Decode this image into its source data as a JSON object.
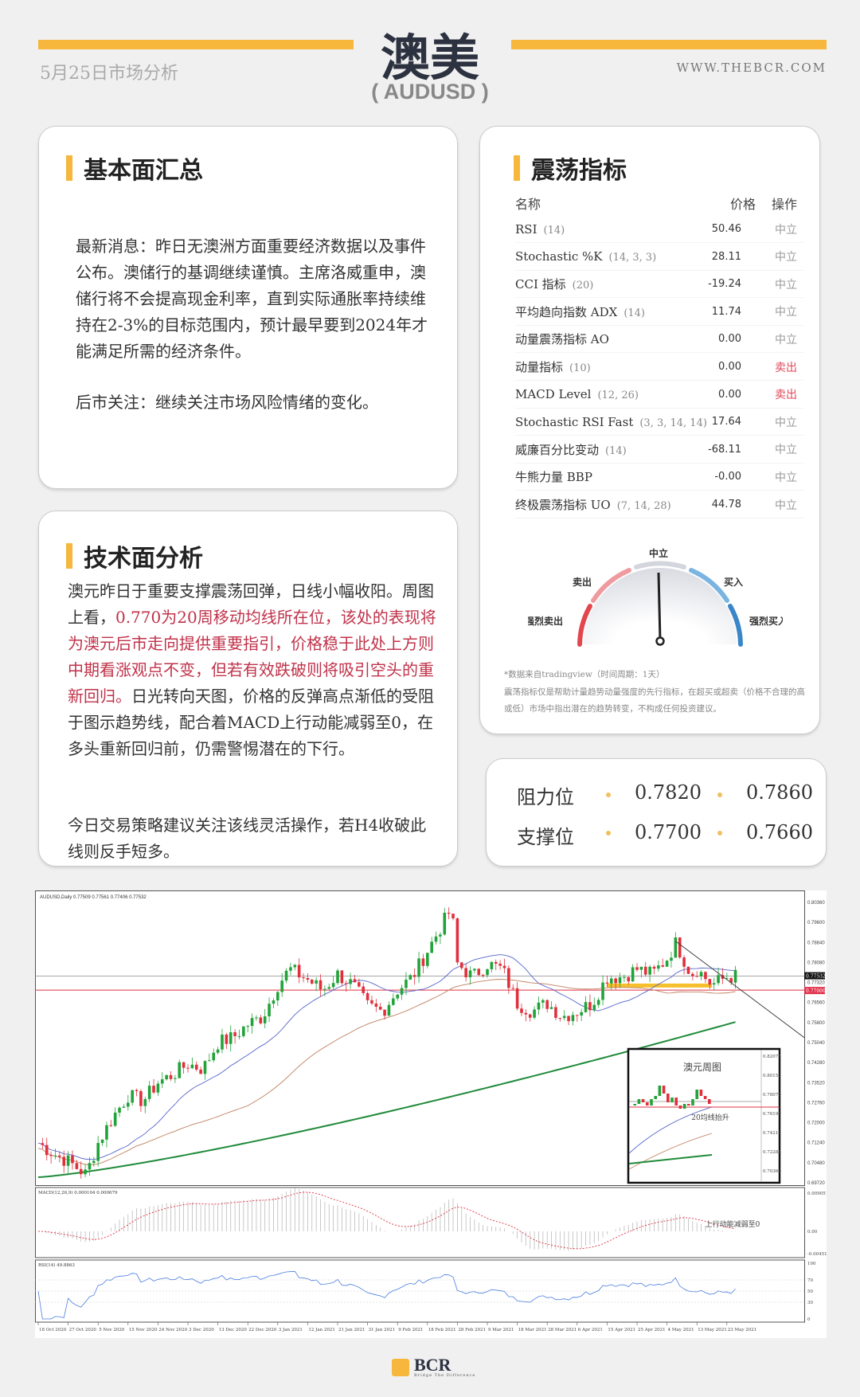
{
  "header": {
    "title": "澳美",
    "subtitle": "( AUDUSD )",
    "date": "5月25日市场分析",
    "site": "WWW.THEBCR.COM"
  },
  "colors": {
    "accent": "#f6b73c",
    "red": "#c0324a",
    "dark": "#2d3240"
  },
  "fundamentals": {
    "title": "基本面汇总",
    "p1": "最新消息：昨日无澳洲方面重要经济数据以及事件公布。澳储行的基调继续谨慎。主席洛威重申，澳储行将不会提高现金利率，直到实际通胀率持续维持在2-3%的目标范围内，预计最早要到2024年才能满足所需的经济条件。",
    "p2": "后市关注：继续关注市场风险情绪的变化。"
  },
  "technical": {
    "title": "技术面分析",
    "p1a": "澳元昨日于重要支撑震荡回弹，日线小幅收阳。周图上看，",
    "p1b": "0.770为20周移动均线所在位，该处的表现将为澳元后市走向提供重要指引，价格稳于此处上方则中期看涨观点不变，但若有效跌破则将吸引空头的重新回归。",
    "p1c": "日光转向天图，价格的反弹高点渐低的受阻于图示趋势线，配合着MACD上行动能减弱至0，在多头重新回归前，仍需警惕潜在的下行。",
    "p2": "今日交易策略建议关注该线灵活操作，若H4收破此线则反手短多。"
  },
  "oscillators": {
    "title": "震荡指标",
    "headers": [
      "名称",
      "价格",
      "操作"
    ],
    "rows": [
      {
        "name": "RSI",
        "param": "(14)",
        "value": "50.46",
        "action": "中立"
      },
      {
        "name": "Stochastic %K",
        "param": "(14, 3, 3)",
        "value": "28.11",
        "action": "中立"
      },
      {
        "name": "CCI 指标",
        "param": "(20)",
        "value": "-19.24",
        "action": "中立"
      },
      {
        "name": "平均趋向指数 ADX",
        "param": "(14)",
        "value": "11.74",
        "action": "中立"
      },
      {
        "name": "动量震荡指标 AO",
        "param": "",
        "value": "0.00",
        "action": "中立"
      },
      {
        "name": "动量指标",
        "param": "(10)",
        "value": "0.00",
        "action": "卖出"
      },
      {
        "name": "MACD Level",
        "param": "(12, 26)",
        "value": "0.00",
        "action": "卖出"
      },
      {
        "name": "Stochastic RSI Fast",
        "param": "(3, 3, 14, 14)",
        "value": "17.64",
        "action": "中立"
      },
      {
        "name": "威廉百分比变动",
        "param": "(14)",
        "value": "-68.11",
        "action": "中立"
      },
      {
        "name": "牛熊力量 BBP",
        "param": "",
        "value": "-0.00",
        "action": "中立"
      },
      {
        "name": "终极震荡指标 UO",
        "param": "(7, 14, 28)",
        "value": "44.78",
        "action": "中立"
      }
    ],
    "gauge": {
      "labels": [
        "强烈卖出",
        "卖出",
        "中立",
        "买入",
        "强烈买入"
      ],
      "reading": "中立"
    },
    "note1": "*数据来自tradingview（时间周期：1天）",
    "note2": "震荡指标仅是帮助计量趋势动量强度的先行指标，在超买或超卖（价格不合理的高或低）市场中指出潜在的趋势转变，不构成任何投资建议。"
  },
  "levels": {
    "resistance_label": "阻力位",
    "support_label": "支撑位",
    "resistance": [
      "0.7820",
      "0.7860"
    ],
    "support": [
      "0.7700",
      "0.7660"
    ]
  },
  "chart_data": {
    "type": "candlestick",
    "legend": "AUDUSD,Daily  0.77509 0.77561 0.77406 0.77532",
    "macd_legend": "MACD(12,26,9) 0.000104 0.000679",
    "rsi_legend": "RSI(14) 49.8863",
    "ylim": [
      0.6972,
      0.8036
    ],
    "price_ticks": [
      "0.80360",
      "0.79600",
      "0.78840",
      "0.78080",
      "0.77320",
      "0.76560",
      "0.75800",
      "0.75040",
      "0.74280",
      "0.73520",
      "0.72760",
      "0.72000",
      "0.71240",
      "0.70480",
      "0.69720"
    ],
    "current_price": "0.77532",
    "support_line": "0.77000",
    "macd_ticks": [
      "0.009051",
      "0.00",
      "-0.004512"
    ],
    "rsi_ticks": [
      "100",
      "70",
      "50",
      "30",
      "0"
    ],
    "dates": [
      "18 Oct 2020",
      "27 Oct 2020",
      "5 Nov 2020",
      "15 Nov 2020",
      "24 Nov 2020",
      "3 Dec 2020",
      "13 Dec 2020",
      "22 Dec 2020",
      "3 Jan 2021",
      "12 Jan 2021",
      "21 Jan 2021",
      "31 Jan 2021",
      "9 Feb 2021",
      "18 Feb 2021",
      "28 Feb 2021",
      "9 Mar 2021",
      "18 Mar 2021",
      "28 Mar 2021",
      "6 Apr 2021",
      "15 Apr 2021",
      "25 Apr 2021",
      "4 May 2021",
      "13 May 2021",
      "23 May 2021"
    ],
    "close_path": [
      [
        0,
        0.712
      ],
      [
        0.5,
        0.708
      ],
      [
        1,
        0.705
      ],
      [
        1.6,
        0.7
      ],
      [
        2,
        0.712
      ],
      [
        2.5,
        0.722
      ],
      [
        3,
        0.73
      ],
      [
        3.5,
        0.728
      ],
      [
        4,
        0.735
      ],
      [
        4.5,
        0.738
      ],
      [
        5,
        0.742
      ],
      [
        5.5,
        0.74
      ],
      [
        6,
        0.75
      ],
      [
        6.5,
        0.752
      ],
      [
        7,
        0.757
      ],
      [
        7.5,
        0.76
      ],
      [
        8,
        0.772
      ],
      [
        8.4,
        0.778
      ],
      [
        9,
        0.774
      ],
      [
        9.5,
        0.77
      ],
      [
        10,
        0.776
      ],
      [
        10.5,
        0.772
      ],
      [
        11,
        0.764
      ],
      [
        11.5,
        0.762
      ],
      [
        12,
        0.77
      ],
      [
        12.5,
        0.775
      ],
      [
        13,
        0.785
      ],
      [
        13.5,
        0.795
      ],
      [
        13.8,
        0.801
      ],
      [
        14,
        0.78
      ],
      [
        14.5,
        0.775
      ],
      [
        15,
        0.78
      ],
      [
        15.5,
        0.778
      ],
      [
        16,
        0.765
      ],
      [
        16.5,
        0.762
      ],
      [
        17,
        0.765
      ],
      [
        17.5,
        0.76
      ],
      [
        18,
        0.762
      ],
      [
        18.5,
        0.765
      ],
      [
        19,
        0.775
      ],
      [
        19.5,
        0.775
      ],
      [
        20,
        0.778
      ],
      [
        20.5,
        0.776
      ],
      [
        21,
        0.782
      ],
      [
        21.3,
        0.788
      ],
      [
        21.8,
        0.776
      ],
      [
        22,
        0.778
      ],
      [
        22.5,
        0.772
      ],
      [
        23,
        0.775
      ],
      [
        23.3,
        0.7753
      ]
    ],
    "inset": {
      "title": "澳元周图",
      "annotation": "20均线抬升",
      "ticks": [
        "0.82075",
        "0.80150",
        "0.78070",
        "0.76190",
        "0.74210",
        "0.72285",
        "0.70360"
      ]
    },
    "macd_annotation": "上行动能减弱至0"
  },
  "footer": {
    "logo": "BCR",
    "tagline": "Bridge The Difference"
  }
}
